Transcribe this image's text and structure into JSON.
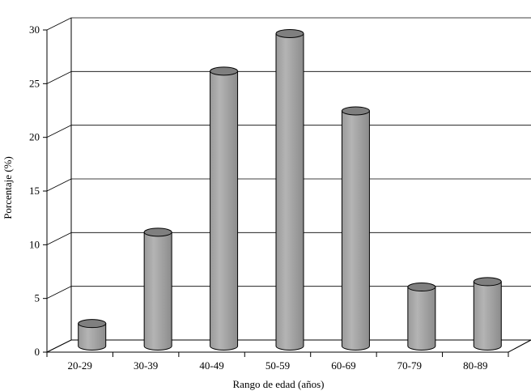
{
  "chart_data": {
    "type": "bar",
    "style": "3d-cylinder",
    "title": "",
    "xlabel": "Rango de edad (años)",
    "ylabel": "Porcentaje (%)",
    "categories": [
      "20-29",
      "30-39",
      "40-49",
      "50-59",
      "60-69",
      "70-79",
      "80-89"
    ],
    "values": [
      2.1,
      10.6,
      25.6,
      29.1,
      21.9,
      5.5,
      6.0
    ],
    "ylim": [
      0,
      30
    ],
    "yticks": [
      "0",
      "5",
      "10",
      "15",
      "20",
      "25",
      "30"
    ],
    "grid": true,
    "legend": "none",
    "colors": {
      "bar": "#a6a6a6",
      "bar_top": "#7f7f7f",
      "grid": "#000000",
      "axis": "#000000"
    }
  }
}
